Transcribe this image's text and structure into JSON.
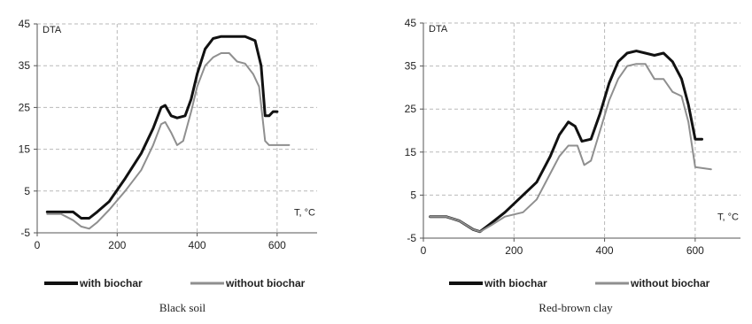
{
  "colors": {
    "with_biochar": "#111111",
    "without_biochar": "#8f8f8f",
    "grid": "#b9b9b9",
    "axis": "#555555"
  },
  "chart_data": [
    {
      "type": "line",
      "caption": "Black soil",
      "ylabel": "DTA",
      "xlabel": "T, °C",
      "xlim": [
        0,
        700
      ],
      "ylim": [
        -5,
        45
      ],
      "xticks": [
        0,
        200,
        400,
        600
      ],
      "yticks": [
        -5,
        5,
        15,
        25,
        35,
        45
      ],
      "grid": true,
      "legend_position": "bottom",
      "series": [
        {
          "name": "with biochar",
          "x": [
            25,
            60,
            90,
            110,
            130,
            150,
            180,
            220,
            260,
            290,
            310,
            320,
            335,
            350,
            370,
            385,
            400,
            420,
            440,
            460,
            480,
            500,
            520,
            545,
            560,
            570,
            580,
            590,
            600
          ],
          "y": [
            0,
            0,
            0,
            -1.5,
            -1.5,
            0,
            2.5,
            8,
            14,
            20,
            25,
            25.5,
            23,
            22.5,
            23,
            27,
            33,
            39,
            41.5,
            42,
            42,
            42,
            42,
            41,
            35,
            23,
            23,
            24,
            24
          ]
        },
        {
          "name": "without biochar",
          "x": [
            25,
            60,
            90,
            110,
            130,
            150,
            180,
            220,
            260,
            290,
            310,
            320,
            335,
            350,
            365,
            385,
            400,
            420,
            440,
            460,
            480,
            500,
            520,
            540,
            555,
            570,
            580,
            595,
            630
          ],
          "y": [
            -0.5,
            -0.5,
            -2,
            -3.5,
            -4,
            -2.5,
            0.5,
            5,
            10,
            16,
            21,
            21.5,
            19,
            16,
            17,
            24,
            30,
            35,
            37,
            38,
            38,
            36,
            35.5,
            33,
            30,
            17,
            16,
            16,
            16
          ]
        }
      ]
    },
    {
      "type": "line",
      "caption": "Red-brown clay",
      "ylabel": "DTA",
      "xlabel": "T, °C",
      "xlim": [
        0,
        700
      ],
      "ylim": [
        -5,
        45
      ],
      "xticks": [
        0,
        200,
        400,
        600
      ],
      "yticks": [
        -5,
        5,
        15,
        25,
        35,
        45
      ],
      "grid": true,
      "legend_position": "bottom",
      "series": [
        {
          "name": "with biochar",
          "x": [
            15,
            50,
            80,
            110,
            125,
            150,
            180,
            220,
            250,
            280,
            300,
            320,
            335,
            350,
            370,
            390,
            410,
            430,
            450,
            470,
            490,
            510,
            530,
            550,
            570,
            585,
            600,
            615
          ],
          "y": [
            0,
            0,
            -1,
            -3,
            -3.5,
            -1.5,
            1,
            5,
            8,
            14,
            19,
            22,
            21,
            17.5,
            18,
            24,
            31,
            36,
            38,
            38.5,
            38,
            37.5,
            38,
            36,
            32,
            26,
            18,
            18
          ]
        },
        {
          "name": "without biochar",
          "x": [
            15,
            50,
            80,
            110,
            125,
            150,
            180,
            220,
            250,
            280,
            300,
            320,
            340,
            355,
            370,
            390,
            410,
            430,
            450,
            470,
            490,
            510,
            530,
            550,
            570,
            585,
            600,
            635
          ],
          "y": [
            0,
            0,
            -1,
            -3,
            -3.5,
            -2,
            0,
            1,
            4,
            10,
            14,
            16.5,
            16.5,
            12,
            13,
            20,
            27,
            32,
            35,
            35.5,
            35.5,
            32,
            32,
            29,
            28,
            22,
            11.5,
            11
          ]
        }
      ]
    }
  ]
}
